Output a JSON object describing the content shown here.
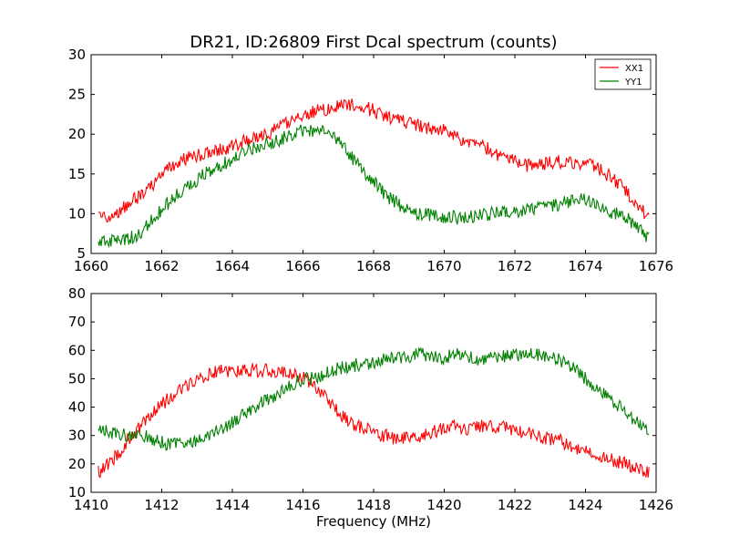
{
  "title": "DR21, ID:26809 First Dcal spectrum (counts)",
  "xlabel": "Frequency (MHz)",
  "colors": {
    "XX1": "#ff0000",
    "YY1": "#008000"
  },
  "chart_data": [
    {
      "type": "line",
      "title": "DR21, ID:26809 First Dcal spectrum (counts)",
      "xlabel": "",
      "ylabel": "",
      "xlim": [
        1660,
        1676
      ],
      "ylim": [
        5,
        30
      ],
      "xticks": [
        "1660",
        "1662",
        "1664",
        "1666",
        "1668",
        "1670",
        "1672",
        "1674",
        "1676"
      ],
      "yticks": [
        "5",
        "10",
        "15",
        "20",
        "25",
        "30"
      ],
      "legend": {
        "position": "top-right",
        "entries": [
          "XX1",
          "YY1"
        ]
      },
      "grid": false,
      "series": [
        {
          "name": "XX1",
          "color": "#ff0000",
          "x": [
            1660.2,
            1660.5,
            1660.8,
            1661.0,
            1661.3,
            1661.6,
            1661.8,
            1662.0,
            1662.3,
            1662.6,
            1663.0,
            1663.3,
            1663.6,
            1664.0,
            1664.3,
            1664.6,
            1665.0,
            1665.3,
            1665.6,
            1665.9,
            1666.2,
            1666.5,
            1666.8,
            1667.0,
            1667.3,
            1667.6,
            1668.0,
            1668.3,
            1668.6,
            1669.0,
            1669.3,
            1669.6,
            1670.0,
            1670.3,
            1670.6,
            1671.0,
            1671.3,
            1671.6,
            1672.0,
            1672.3,
            1672.6,
            1673.0,
            1673.3,
            1673.6,
            1674.0,
            1674.3,
            1674.6,
            1675.0,
            1675.3,
            1675.6,
            1675.8
          ],
          "values": [
            9.5,
            9.8,
            10.3,
            11.0,
            12.0,
            13.0,
            14.0,
            15.0,
            16.0,
            16.8,
            17.3,
            17.8,
            18.0,
            18.5,
            19.0,
            19.5,
            20.0,
            20.8,
            21.5,
            22.3,
            22.8,
            23.0,
            23.2,
            23.5,
            23.8,
            23.5,
            23.0,
            22.3,
            21.8,
            21.5,
            21.0,
            20.8,
            20.5,
            20.0,
            19.0,
            18.5,
            18.0,
            17.3,
            16.5,
            16.0,
            16.0,
            16.5,
            16.5,
            16.5,
            16.3,
            16.0,
            15.0,
            13.5,
            12.0,
            10.5,
            9.5
          ]
        },
        {
          "name": "YY1",
          "color": "#008000",
          "x": [
            1660.2,
            1660.5,
            1660.8,
            1661.0,
            1661.3,
            1661.6,
            1661.8,
            1662.0,
            1662.3,
            1662.6,
            1663.0,
            1663.3,
            1663.6,
            1664.0,
            1664.3,
            1664.6,
            1665.0,
            1665.3,
            1665.6,
            1665.9,
            1666.2,
            1666.5,
            1666.8,
            1667.0,
            1667.3,
            1667.6,
            1668.0,
            1668.3,
            1668.6,
            1669.0,
            1669.3,
            1669.6,
            1670.0,
            1670.3,
            1670.6,
            1671.0,
            1671.3,
            1671.6,
            1672.0,
            1672.3,
            1672.6,
            1673.0,
            1673.3,
            1673.6,
            1674.0,
            1674.3,
            1674.6,
            1675.0,
            1675.3,
            1675.6,
            1675.8
          ],
          "values": [
            6.5,
            6.5,
            6.5,
            6.8,
            7.3,
            8.5,
            9.5,
            10.5,
            11.8,
            13.0,
            14.3,
            15.3,
            16.0,
            16.8,
            17.5,
            18.3,
            18.8,
            19.3,
            19.8,
            20.3,
            20.5,
            20.3,
            19.8,
            19.0,
            17.5,
            16.0,
            14.0,
            12.5,
            11.5,
            10.5,
            10.0,
            9.8,
            9.5,
            9.5,
            9.6,
            9.8,
            10.0,
            10.2,
            10.3,
            10.5,
            10.8,
            11.0,
            11.3,
            11.5,
            11.8,
            11.0,
            10.5,
            9.8,
            9.0,
            8.0,
            6.8
          ]
        }
      ]
    },
    {
      "type": "line",
      "title": "",
      "xlabel": "Frequency (MHz)",
      "ylabel": "",
      "xlim": [
        1410,
        1426
      ],
      "ylim": [
        10,
        80
      ],
      "xticks": [
        "1410",
        "1412",
        "1414",
        "1416",
        "1418",
        "1420",
        "1422",
        "1424",
        "1426"
      ],
      "yticks": [
        "10",
        "20",
        "30",
        "40",
        "50",
        "60",
        "70",
        "80"
      ],
      "grid": false,
      "series": [
        {
          "name": "XX1",
          "color": "#ff0000",
          "x": [
            1410.2,
            1410.5,
            1410.8,
            1411.0,
            1411.3,
            1411.6,
            1411.8,
            1412.0,
            1412.3,
            1412.6,
            1413.0,
            1413.3,
            1413.6,
            1414.0,
            1414.3,
            1414.6,
            1415.0,
            1415.3,
            1415.6,
            1415.9,
            1416.2,
            1416.5,
            1416.8,
            1417.0,
            1417.3,
            1417.6,
            1418.0,
            1418.3,
            1418.6,
            1419.0,
            1419.3,
            1419.6,
            1420.0,
            1420.3,
            1420.6,
            1421.0,
            1421.3,
            1421.6,
            1422.0,
            1422.3,
            1422.6,
            1423.0,
            1423.3,
            1423.6,
            1424.0,
            1424.3,
            1424.6,
            1425.0,
            1425.3,
            1425.6,
            1425.8
          ],
          "values": [
            17.0,
            20.0,
            24.0,
            28.0,
            32.0,
            36.0,
            39.0,
            41.0,
            44.0,
            47.0,
            50.0,
            51.5,
            52.5,
            53.0,
            53.0,
            53.0,
            53.0,
            52.5,
            52.0,
            51.0,
            49.0,
            45.0,
            41.0,
            38.0,
            35.0,
            33.0,
            31.0,
            30.0,
            29.0,
            29.0,
            30.0,
            31.0,
            32.5,
            33.0,
            32.5,
            33.0,
            33.5,
            33.0,
            32.0,
            31.5,
            30.0,
            29.0,
            28.0,
            26.0,
            24.5,
            23.0,
            22.0,
            20.5,
            19.0,
            18.0,
            17.5
          ]
        },
        {
          "name": "YY1",
          "color": "#008000",
          "x": [
            1410.2,
            1410.5,
            1410.8,
            1411.0,
            1411.3,
            1411.6,
            1411.8,
            1412.0,
            1412.3,
            1412.6,
            1413.0,
            1413.3,
            1413.6,
            1414.0,
            1414.3,
            1414.6,
            1415.0,
            1415.3,
            1415.6,
            1415.9,
            1416.2,
            1416.5,
            1416.8,
            1417.0,
            1417.3,
            1417.6,
            1418.0,
            1418.3,
            1418.6,
            1419.0,
            1419.3,
            1419.6,
            1420.0,
            1420.3,
            1420.6,
            1421.0,
            1421.3,
            1421.6,
            1422.0,
            1422.3,
            1422.6,
            1423.0,
            1423.3,
            1423.6,
            1424.0,
            1424.3,
            1424.6,
            1425.0,
            1425.3,
            1425.6,
            1425.8
          ],
          "values": [
            32.0,
            31.0,
            30.5,
            30.0,
            30.0,
            29.5,
            28.5,
            27.5,
            27.0,
            27.0,
            28.5,
            30.0,
            32.0,
            34.5,
            37.0,
            40.0,
            42.5,
            45.0,
            47.5,
            49.0,
            50.0,
            51.0,
            52.5,
            53.5,
            54.5,
            55.0,
            55.5,
            56.5,
            57.5,
            58.0,
            58.5,
            58.0,
            57.5,
            58.5,
            58.0,
            57.0,
            57.5,
            58.0,
            58.5,
            58.5,
            58.5,
            58.0,
            56.5,
            54.0,
            50.0,
            47.0,
            44.0,
            40.0,
            36.0,
            33.5,
            32.5
          ]
        }
      ]
    }
  ]
}
